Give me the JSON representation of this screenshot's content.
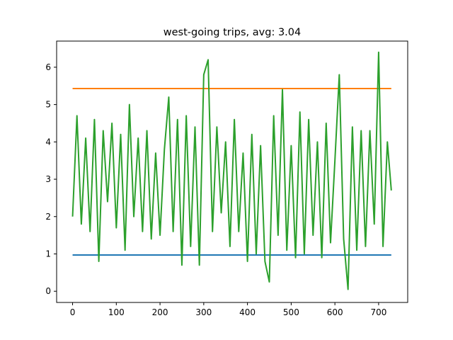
{
  "chart_data": {
    "type": "line",
    "title": "west-going trips, avg: 3.04",
    "xlabel": "",
    "ylabel": "",
    "xlim": [
      -36.5,
      766.5
    ],
    "ylim": [
      -0.3,
      6.7
    ],
    "xticks": [
      0,
      100,
      200,
      300,
      400,
      500,
      600,
      700
    ],
    "yticks": [
      0,
      1,
      2,
      3,
      4,
      5,
      6
    ],
    "grid": false,
    "legend": "none",
    "series": [
      {
        "color": "#1f77b4",
        "x": [
          0,
          729
        ],
        "values": [
          0.97,
          0.97
        ]
      },
      {
        "color": "#ff7f0e",
        "x": [
          0,
          729
        ],
        "values": [
          5.43,
          5.43
        ]
      },
      {
        "color": "#2ca02c",
        "x": [
          0,
          10,
          20,
          30,
          40,
          50,
          60,
          70,
          80,
          90,
          100,
          110,
          120,
          130,
          140,
          150,
          160,
          170,
          180,
          190,
          200,
          210,
          220,
          230,
          240,
          250,
          260,
          270,
          280,
          290,
          300,
          310,
          320,
          330,
          340,
          350,
          360,
          370,
          380,
          390,
          400,
          410,
          420,
          430,
          440,
          450,
          460,
          470,
          480,
          490,
          500,
          510,
          520,
          530,
          540,
          550,
          560,
          570,
          580,
          590,
          600,
          610,
          620,
          630,
          640,
          650,
          660,
          670,
          680,
          690,
          700,
          710,
          720,
          729
        ],
        "values": [
          2.0,
          4.7,
          1.8,
          4.1,
          1.6,
          4.6,
          0.8,
          4.3,
          2.4,
          4.5,
          1.7,
          4.2,
          1.1,
          5.0,
          2.0,
          4.1,
          1.6,
          4.3,
          1.4,
          3.7,
          1.5,
          3.8,
          5.2,
          1.6,
          4.6,
          0.7,
          4.7,
          1.2,
          4.4,
          0.7,
          5.8,
          6.2,
          1.6,
          4.4,
          2.1,
          4.0,
          1.2,
          4.6,
          1.6,
          3.7,
          0.8,
          4.2,
          1.0,
          3.9,
          0.8,
          0.25,
          4.7,
          1.5,
          5.4,
          1.1,
          3.9,
          0.9,
          4.8,
          1.0,
          4.6,
          1.5,
          4.0,
          0.9,
          4.5,
          1.3,
          3.5,
          5.8,
          1.4,
          0.05,
          4.4,
          1.1,
          4.3,
          1.2,
          4.3,
          1.8,
          6.4,
          1.2,
          4.0,
          2.7
        ]
      }
    ]
  }
}
